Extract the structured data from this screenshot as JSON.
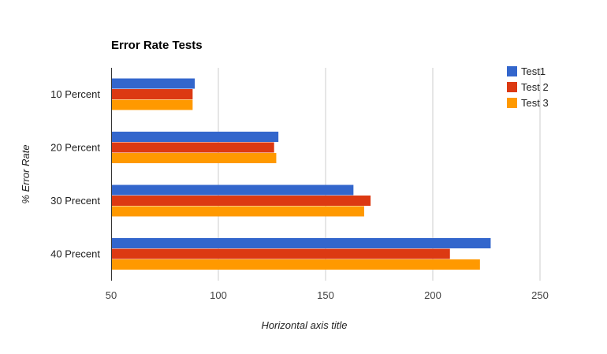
{
  "chart_data": {
    "type": "bar",
    "orientation": "horizontal",
    "title": "Error Rate Tests",
    "xlabel": "Horizontal axis title",
    "ylabel": "% Error Rate",
    "categories": [
      "10 Percent",
      "20 Percent",
      "30 Precent",
      "40 Precent"
    ],
    "series": [
      {
        "name": "Test1",
        "color": "#3366cc",
        "values": [
          89,
          128,
          163,
          227
        ]
      },
      {
        "name": "Test 2",
        "color": "#dc3912",
        "values": [
          88,
          126,
          171,
          208
        ]
      },
      {
        "name": "Test 3",
        "color": "#ff9900",
        "values": [
          88,
          127,
          168,
          222
        ]
      }
    ],
    "xlim": [
      50,
      275
    ],
    "xticks": [
      50,
      100,
      150,
      200,
      250
    ],
    "grid": true,
    "legend_position": "right"
  }
}
